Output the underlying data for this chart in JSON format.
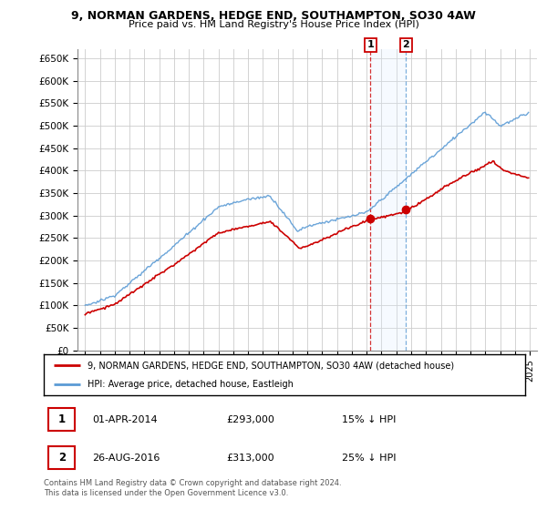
{
  "title1": "9, NORMAN GARDENS, HEDGE END, SOUTHAMPTON, SO30 4AW",
  "title2": "Price paid vs. HM Land Registry's House Price Index (HPI)",
  "ylabel_ticks": [
    "£0",
    "£50K",
    "£100K",
    "£150K",
    "£200K",
    "£250K",
    "£300K",
    "£350K",
    "£400K",
    "£450K",
    "£500K",
    "£550K",
    "£600K",
    "£650K"
  ],
  "ytick_values": [
    0,
    50000,
    100000,
    150000,
    200000,
    250000,
    300000,
    350000,
    400000,
    450000,
    500000,
    550000,
    600000,
    650000
  ],
  "ylim": [
    0,
    670000
  ],
  "xlim_start": 1994.5,
  "xlim_end": 2025.5,
  "transaction1_date": 2014.25,
  "transaction1_price": 293000,
  "transaction2_date": 2016.65,
  "transaction2_price": 313000,
  "legend_line1": "9, NORMAN GARDENS, HEDGE END, SOUTHAMPTON, SO30 4AW (detached house)",
  "legend_line2": "HPI: Average price, detached house, Eastleigh",
  "table_row1": [
    "1",
    "01-APR-2014",
    "£293,000",
    "15% ↓ HPI"
  ],
  "table_row2": [
    "2",
    "26-AUG-2016",
    "£313,000",
    "25% ↓ HPI"
  ],
  "footnote": "Contains HM Land Registry data © Crown copyright and database right 2024.\nThis data is licensed under the Open Government Licence v3.0.",
  "hpi_color": "#5b9bd5",
  "sold_color": "#cc0000",
  "shaded_color": "#ddeeff",
  "grid_color": "#cccccc",
  "background_color": "#ffffff",
  "transaction_box_color": "#cc0000"
}
